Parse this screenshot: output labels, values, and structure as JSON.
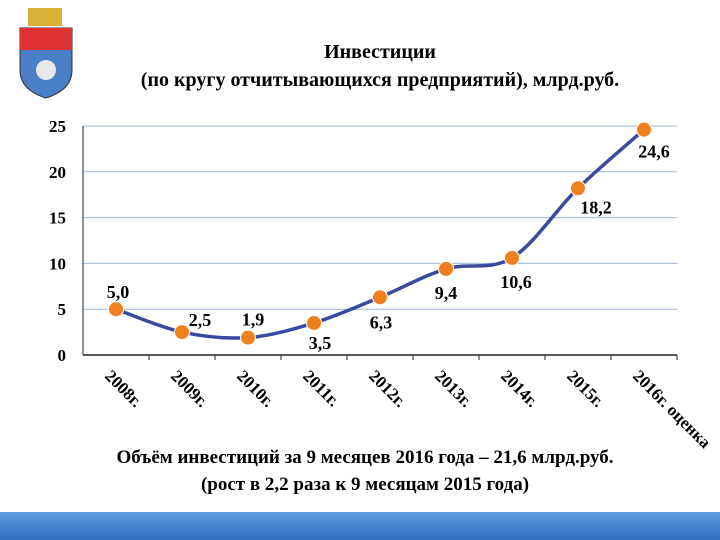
{
  "chart_data": {
    "type": "line",
    "title": "Инвестиции",
    "subtitle": "(по кругу отчитывающихся предприятий), млрд.руб.",
    "categories": [
      "2008г.",
      "2009г.",
      "2010г.",
      "2011г.",
      "2012г.",
      "2013г.",
      "2014г.",
      "2015г.",
      "2016г. оценка"
    ],
    "series": [
      {
        "color": "#3a4aa0",
        "marker_color": "#f07f1e",
        "values": [
          5.0,
          2.5,
          1.9,
          3.5,
          6.3,
          9.4,
          10.6,
          18.2,
          24.6
        ],
        "value_labels": [
          "5,0",
          "2,5",
          "1,9",
          "3,5",
          "6,3",
          "9,4",
          "10,6",
          "18,2",
          "24,6"
        ]
      }
    ],
    "ylim": [
      0,
      25
    ],
    "yticks": [
      0,
      5,
      10,
      15,
      20,
      25
    ],
    "grid": true,
    "notes": [
      "Объём инвестиций за 9 месяцев 2016 года – 21,6 млрд.руб.",
      "(рост в 2,2 раза к 9 месяцам 2015 года)"
    ]
  }
}
